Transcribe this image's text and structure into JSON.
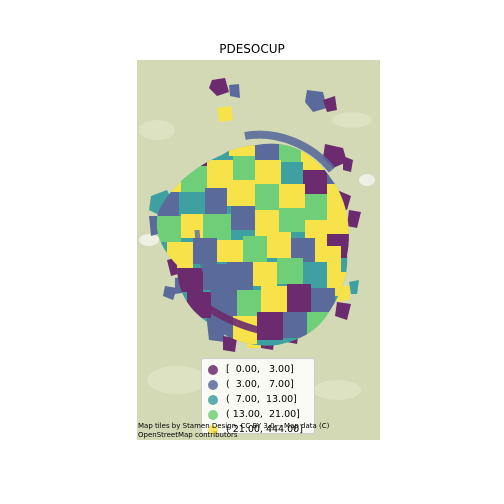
{
  "title": "PDESOCUP",
  "legend": {
    "items": [
      {
        "label": "[  0.00,   3.00]",
        "color": "#6b2b6e"
      },
      {
        "label": "(  3.00,   7.00]",
        "color": "#5a6a9a"
      },
      {
        "label": "(  7.00,  13.00]",
        "color": "#3ea0a0"
      },
      {
        "label": "( 13.00,  21.00]",
        "color": "#6fcf78"
      },
      {
        "label": "( 21.00, 444.00]",
        "color": "#f7e24a"
      }
    ]
  },
  "attribution": {
    "line1": "Map tiles by Stamen Design, CC BY 3.0 -- Map data (C)",
    "line2": "OpenStreetMap contributors"
  }
}
